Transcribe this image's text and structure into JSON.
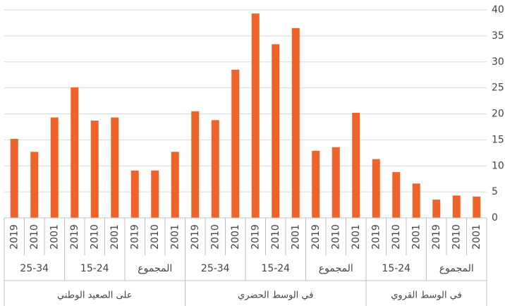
{
  "chart_data": {
    "type": "bar",
    "color": "#ee6329",
    "ylim": [
      0,
      40
    ],
    "yticks": [
      0,
      5,
      10,
      15,
      20,
      25,
      30,
      35,
      40
    ],
    "grid": true,
    "groups": [
      {
        "label": "على الصعيد الوطني",
        "subgroups": [
          {
            "label": "25-34",
            "categories": [
              "2019",
              "2010",
              "2001"
            ],
            "values": [
              15.2,
              12.7,
              19.3
            ]
          },
          {
            "label": "15-24",
            "categories": [
              "2019",
              "2010",
              "2001"
            ],
            "values": [
              25.1,
              18.7,
              19.3
            ]
          },
          {
            "label": "المجموع",
            "categories": [
              "2019",
              "2010",
              "2001"
            ],
            "values": [
              9.1,
              9.1,
              12.7
            ]
          }
        ]
      },
      {
        "label": "في الوسط الحضري",
        "subgroups": [
          {
            "label": "25-34",
            "categories": [
              "2019",
              "2010",
              "2001"
            ],
            "values": [
              20.5,
              18.8,
              28.5
            ]
          },
          {
            "label": "15-24",
            "categories": [
              "2019",
              "2010",
              "2001"
            ],
            "values": [
              39.3,
              33.4,
              36.5
            ]
          },
          {
            "label": "المجموع",
            "categories": [
              "2019",
              "2010",
              "2001"
            ],
            "values": [
              12.9,
              13.6,
              20.2
            ]
          }
        ]
      },
      {
        "label": "في الوسط القروي",
        "subgroups": [
          {
            "label": "15-24",
            "categories": [
              "2019",
              "2010",
              "2001"
            ],
            "values": [
              11.3,
              8.8,
              6.6
            ]
          },
          {
            "label": "المجموع",
            "categories": [
              "2019",
              "2010",
              "2001"
            ],
            "values": [
              3.5,
              4.3,
              4.1
            ]
          }
        ]
      }
    ]
  }
}
